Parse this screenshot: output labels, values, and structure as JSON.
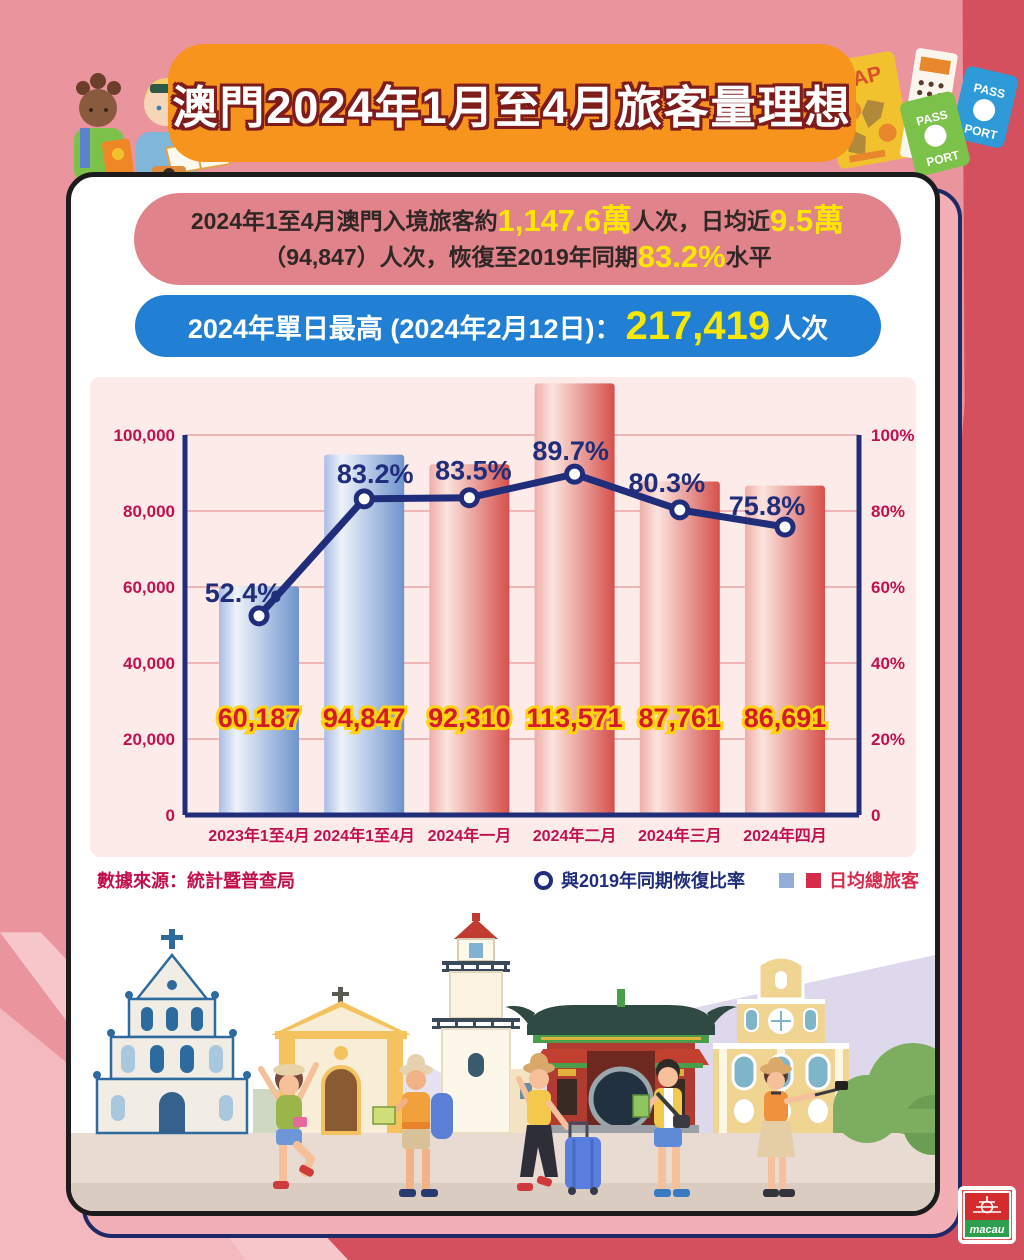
{
  "banner": {
    "title": "澳門2024年1月至4月旅客量理想"
  },
  "summary": {
    "line1": [
      {
        "t": "2024年1至4月澳門入境旅客約"
      },
      {
        "t": "1,147.6萬"
      },
      {
        "t": "人次，日均近"
      },
      {
        "t": "9.5萬"
      }
    ],
    "line2": [
      {
        "t": "（94,847）人次，恢復至2019年同期"
      },
      {
        "t": "83.2%"
      },
      {
        "t": "水平"
      }
    ]
  },
  "record_pill": {
    "prefix": "2024年單日最高 (2024年2月12日)：",
    "value": "217,419",
    "suffix": "人次"
  },
  "chart_data": {
    "type": "bar+line",
    "categories": [
      "2023年1至4月",
      "2024年1至4月",
      "2024年一月",
      "2024年二月",
      "2024年三月",
      "2024年四月"
    ],
    "series": [
      {
        "name": "日均總旅客",
        "type": "bar",
        "values": [
          60187,
          94847,
          92310,
          113571,
          87761,
          86691
        ],
        "value_labels": [
          "60,187",
          "94,847",
          "92,310",
          "113,571",
          "87,761",
          "86,691"
        ],
        "bar_colors": [
          "blue",
          "blue",
          "red",
          "red",
          "red",
          "red"
        ]
      },
      {
        "name": "與2019年同期恢復比率",
        "type": "line",
        "values": [
          52.4,
          83.2,
          83.5,
          89.7,
          80.3,
          75.8
        ],
        "value_labels": [
          "52.4%",
          "83.2%",
          "83.5%",
          "89.7%",
          "80.3%",
          "75.8%"
        ]
      }
    ],
    "left_axis": {
      "max": 100000,
      "ticks": [
        "100,000",
        "80,000",
        "60,000",
        "40,000",
        "20,000",
        "0"
      ]
    },
    "right_axis": {
      "max": 100,
      "ticks": [
        "100%",
        "80%",
        "60%",
        "40%",
        "20%",
        "0"
      ]
    },
    "grid": true,
    "legend_position": "bottom-right"
  },
  "footer": {
    "source": "數據來源：統計暨普查局",
    "legend_line_label": "與2019年同期恢復比率",
    "legend_bar_label": "日均總旅客"
  },
  "decor": {
    "map_label": "MAP",
    "passport_top": "PASS",
    "passport_bottom": "PORT"
  },
  "logo": {
    "text": "macau"
  },
  "colors": {
    "background_pink": "#ea949e",
    "background_dark_red": "#d4505f",
    "banner_orange": "#f7941e",
    "summary_salmon": "#e0838a",
    "highlight_yellow": "#ffe600",
    "pill_blue": "#2180d4",
    "pill_yellow": "#f9e900",
    "panel_pink": "#fcebe9",
    "axis_crimson": "#c2104e",
    "line_navy": "#1f2d7a",
    "bar_value_red": "#d6192b",
    "bar_value_outline": "#ffd312",
    "bar_blue": "#7b9cd4",
    "bar_red": "#d6504c"
  }
}
